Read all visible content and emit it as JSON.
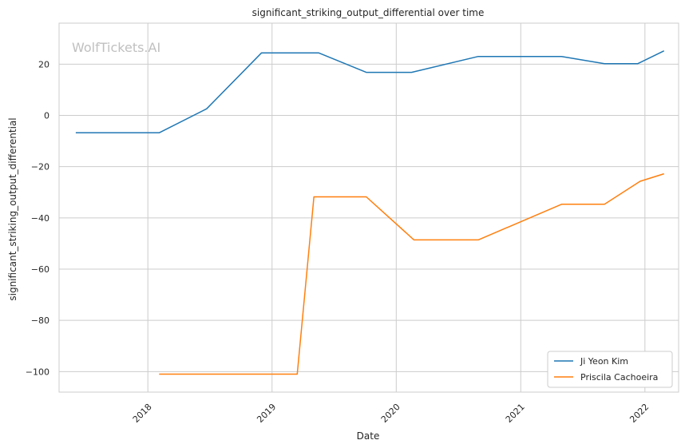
{
  "watermark": "WolfTickets.AI",
  "chart_data": {
    "type": "line",
    "title": "significant_striking_output_differential over time",
    "xlabel": "Date",
    "ylabel": "significant_striking_output_differential",
    "x_type": "date",
    "xlim": [
      "2017-04-15",
      "2022-04-10"
    ],
    "ylim": [
      -108,
      36
    ],
    "x_ticks": [
      {
        "label": "2018",
        "date": "2018-01-01"
      },
      {
        "label": "2019",
        "date": "2019-01-01"
      },
      {
        "label": "2020",
        "date": "2020-01-01"
      },
      {
        "label": "2021",
        "date": "2021-01-01"
      },
      {
        "label": "2022",
        "date": "2022-01-01"
      }
    ],
    "y_ticks": [
      20,
      0,
      -20,
      -40,
      -60,
      -80,
      -100
    ],
    "y_tick_labels": [
      "20",
      "0",
      "−20",
      "−40",
      "−60",
      "−80",
      "−100"
    ],
    "grid": true,
    "legend_position": "lower right",
    "series": [
      {
        "name": "Ji Yeon Kim",
        "color": "#1f77b4",
        "points": [
          {
            "x": "2017-06-03",
            "y": -6.8
          },
          {
            "x": "2018-02-03",
            "y": -6.8
          },
          {
            "x": "2018-06-23",
            "y": 2.6
          },
          {
            "x": "2018-12-01",
            "y": 24.4
          },
          {
            "x": "2019-05-18",
            "y": 24.4
          },
          {
            "x": "2019-10-05",
            "y": 16.8
          },
          {
            "x": "2020-02-15",
            "y": 16.8
          },
          {
            "x": "2020-08-29",
            "y": 23.0
          },
          {
            "x": "2021-05-01",
            "y": 23.0
          },
          {
            "x": "2021-09-04",
            "y": 20.2
          },
          {
            "x": "2021-12-11",
            "y": 20.2
          },
          {
            "x": "2022-02-26",
            "y": 25.2
          }
        ]
      },
      {
        "name": "Priscila Cachoeira",
        "color": "#ff7f0e",
        "points": [
          {
            "x": "2018-02-03",
            "y": -101
          },
          {
            "x": "2019-03-16",
            "y": -101
          },
          {
            "x": "2019-05-04",
            "y": -31.8
          },
          {
            "x": "2019-10-05",
            "y": -31.8
          },
          {
            "x": "2020-02-22",
            "y": -48.6
          },
          {
            "x": "2020-08-29",
            "y": -48.6
          },
          {
            "x": "2021-05-01",
            "y": -34.7
          },
          {
            "x": "2021-09-04",
            "y": -34.7
          },
          {
            "x": "2021-12-18",
            "y": -25.7
          },
          {
            "x": "2022-02-26",
            "y": -22.8
          }
        ]
      }
    ]
  }
}
